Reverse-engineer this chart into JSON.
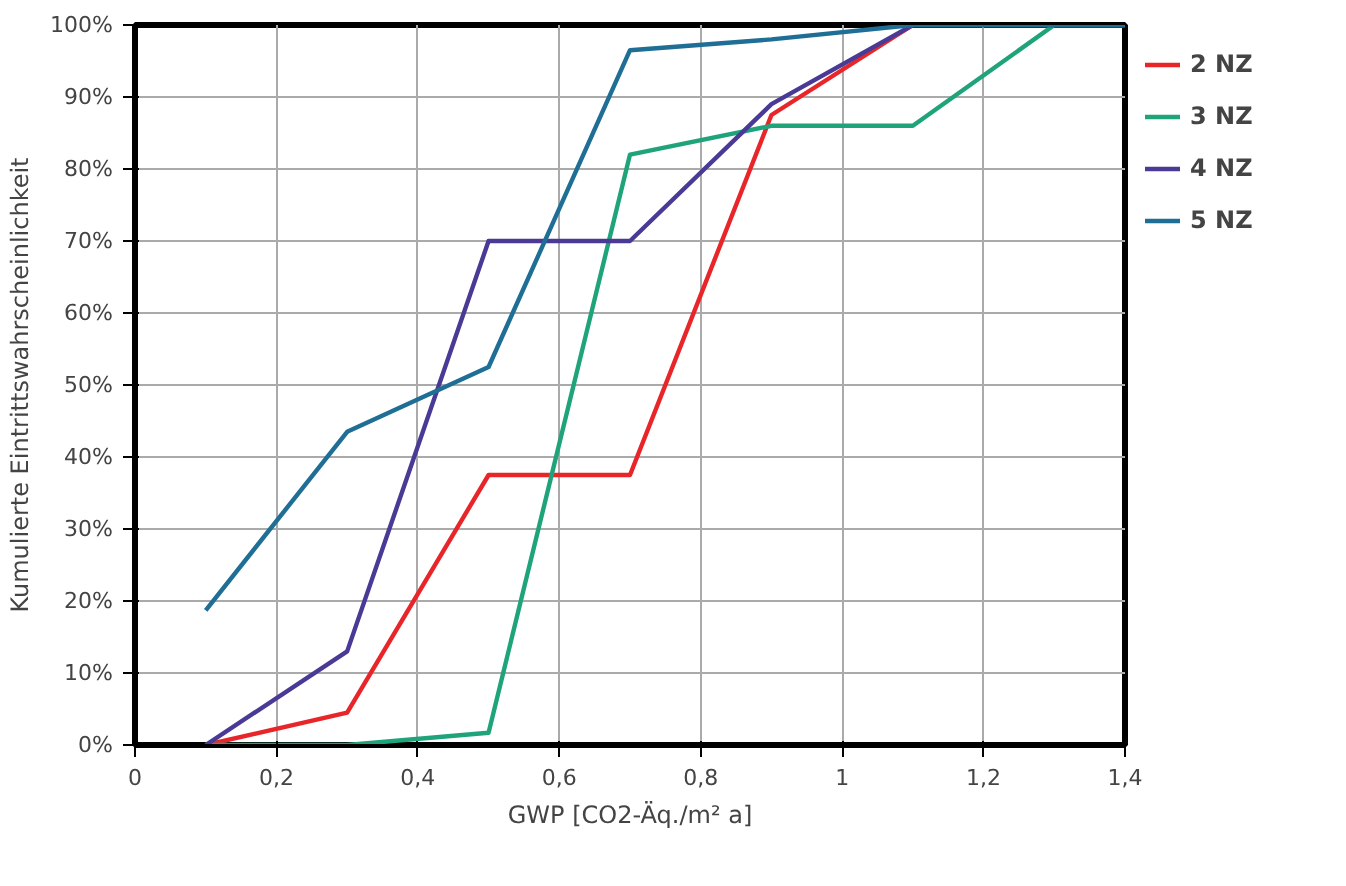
{
  "chart_data": {
    "type": "line",
    "xlabel": "GWP [CO2-Äq./m² a]",
    "ylabel": "Kumulierte Eintrittswahrscheinlichkeit",
    "xlim": [
      0,
      1.4
    ],
    "ylim": [
      0,
      100
    ],
    "xticks": [
      0,
      {
        "value": 0.2,
        "label": "0,2"
      },
      {
        "value": 0.4,
        "label": "0,4"
      },
      {
        "value": 0.6,
        "label": "0,6"
      },
      {
        "value": 0.8,
        "label": "0,8"
      },
      1,
      {
        "value": 1.2,
        "label": "1,2"
      },
      {
        "value": 1.4,
        "label": "1,4"
      }
    ],
    "yticks": [
      {
        "value": 0,
        "label": "0%"
      },
      {
        "value": 10,
        "label": "10%"
      },
      {
        "value": 20,
        "label": "20%"
      },
      {
        "value": 30,
        "label": "30%"
      },
      {
        "value": 40,
        "label": "40%"
      },
      {
        "value": 50,
        "label": "50%"
      },
      {
        "value": 60,
        "label": "60%"
      },
      {
        "value": 70,
        "label": "70%"
      },
      {
        "value": 80,
        "label": "80%"
      },
      {
        "value": 90,
        "label": "90%"
      },
      {
        "value": 100,
        "label": "100%"
      }
    ],
    "grid": true,
    "legend": "right",
    "marker": "none",
    "line_style": "solid",
    "series": [
      {
        "name": "2 NZ",
        "color": "#e8262a",
        "x": [
          0.1,
          0.3,
          0.5,
          0.7,
          0.9,
          1.1,
          1.4
        ],
        "values": [
          0,
          4.5,
          37.5,
          37.5,
          87.5,
          100,
          100
        ]
      },
      {
        "name": "3 NZ",
        "color": "#1fa37a",
        "x": [
          0.1,
          0.3,
          0.5,
          0.7,
          0.9,
          1.1,
          1.3,
          1.4
        ],
        "values": [
          0,
          0,
          1.7,
          82,
          86,
          86,
          100,
          100
        ]
      },
      {
        "name": "4 NZ",
        "color": "#4a3a96",
        "x": [
          0.1,
          0.3,
          0.5,
          0.7,
          0.9,
          1.1,
          1.4
        ],
        "values": [
          0,
          13,
          70,
          70,
          89,
          100,
          100
        ]
      },
      {
        "name": "5 NZ",
        "color": "#1f6e95",
        "x": [
          0.1,
          0.3,
          0.5,
          0.7,
          0.9,
          1.1,
          1.4
        ],
        "values": [
          18.7,
          43.5,
          52.5,
          96.5,
          98,
          100,
          100
        ]
      }
    ]
  }
}
